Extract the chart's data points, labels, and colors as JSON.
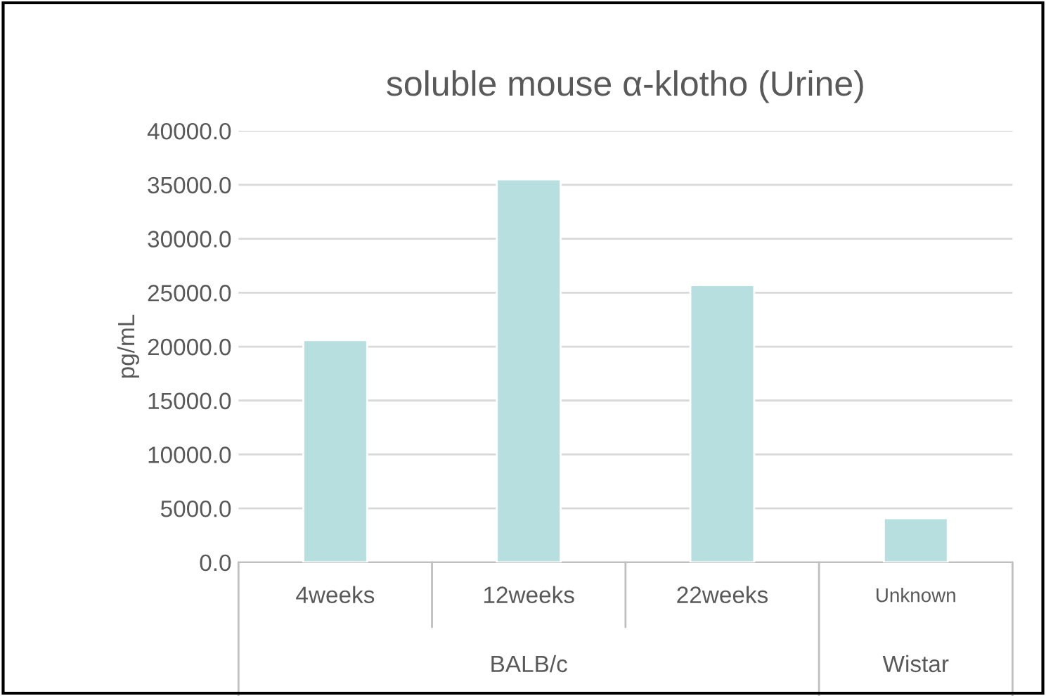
{
  "chart_data": {
    "type": "bar",
    "title": "soluble mouse α-klotho (Urine)",
    "ylabel": "pg/mL",
    "categories": [
      "4weeks",
      "12weeks",
      "22weeks",
      "Unknown"
    ],
    "values": [
      20600,
      35500,
      25700,
      4100
    ],
    "color": "#b8dfe0",
    "ylim": [
      0,
      40000
    ],
    "yticks": [
      {
        "value": 0,
        "label": "0.0"
      },
      {
        "value": 5000,
        "label": "5000.0"
      },
      {
        "value": 10000,
        "label": "10000.0"
      },
      {
        "value": 15000,
        "label": "15000.0"
      },
      {
        "value": 20000,
        "label": "20000.0"
      },
      {
        "value": 25000,
        "label": "25000.0"
      },
      {
        "value": 30000,
        "label": "30000.0"
      },
      {
        "value": 35000,
        "label": "35000.0"
      },
      {
        "value": 40000,
        "label": "40000.0"
      }
    ],
    "grid": "y",
    "annotations": [
      "BALB/c",
      "Wistar"
    ]
  }
}
